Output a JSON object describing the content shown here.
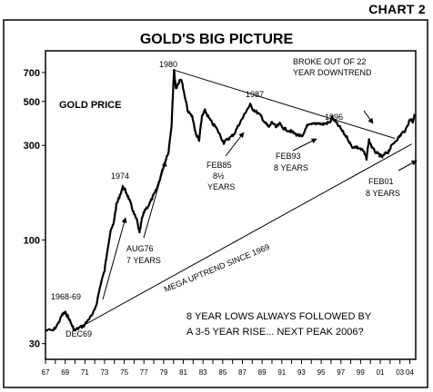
{
  "chart_label": "CHART 2",
  "chart_data": {
    "type": "line",
    "title": "GOLD'S BIG PICTURE",
    "series_label": "GOLD PRICE",
    "y_scale": "log",
    "ylim": [
      25,
      900
    ],
    "y_ticks": [
      30,
      100,
      300,
      500,
      700
    ],
    "x_range": [
      1967,
      2004.6
    ],
    "x_tick_labels": [
      "67",
      "69",
      "71",
      "73",
      "75",
      "77",
      "79",
      "81",
      "83",
      "85",
      "87",
      "89",
      "91",
      "93",
      "95",
      "97",
      "99",
      "01",
      "03",
      "04"
    ],
    "series": [
      {
        "values": [
          [
            1967.0,
            35
          ],
          [
            1967.8,
            35
          ],
          [
            1968.3,
            38
          ],
          [
            1968.7,
            42
          ],
          [
            1969.0,
            43
          ],
          [
            1969.3,
            41
          ],
          [
            1969.7,
            37
          ],
          [
            1969.95,
            35
          ],
          [
            1970.4,
            36
          ],
          [
            1970.9,
            37
          ],
          [
            1971.4,
            40
          ],
          [
            1971.8,
            42
          ],
          [
            1972.2,
            48
          ],
          [
            1972.6,
            60
          ],
          [
            1973.0,
            70
          ],
          [
            1973.3,
            90
          ],
          [
            1973.6,
            110
          ],
          [
            1973.9,
            120
          ],
          [
            1974.2,
            150
          ],
          [
            1974.5,
            165
          ],
          [
            1974.85,
            185
          ],
          [
            1975.1,
            178
          ],
          [
            1975.4,
            165
          ],
          [
            1975.7,
            150
          ],
          [
            1976.0,
            135
          ],
          [
            1976.3,
            125
          ],
          [
            1976.55,
            108
          ],
          [
            1976.8,
            128
          ],
          [
            1977.1,
            142
          ],
          [
            1977.5,
            150
          ],
          [
            1977.9,
            165
          ],
          [
            1978.3,
            180
          ],
          [
            1978.7,
            210
          ],
          [
            1979.1,
            245
          ],
          [
            1979.5,
            280
          ],
          [
            1979.8,
            380
          ],
          [
            1980.05,
            720
          ],
          [
            1980.25,
            580
          ],
          [
            1980.5,
            620
          ],
          [
            1980.8,
            650
          ],
          [
            1981.1,
            540
          ],
          [
            1981.5,
            440
          ],
          [
            1981.9,
            420
          ],
          [
            1982.3,
            340
          ],
          [
            1982.6,
            320
          ],
          [
            1982.9,
            420
          ],
          [
            1983.2,
            450
          ],
          [
            1983.5,
            420
          ],
          [
            1983.9,
            390
          ],
          [
            1984.3,
            370
          ],
          [
            1984.7,
            340
          ],
          [
            1985.1,
            310
          ],
          [
            1985.4,
            320
          ],
          [
            1985.8,
            330
          ],
          [
            1986.2,
            345
          ],
          [
            1986.6,
            380
          ],
          [
            1987.0,
            410
          ],
          [
            1987.4,
            450
          ],
          [
            1987.8,
            480
          ],
          [
            1988.1,
            455
          ],
          [
            1988.5,
            440
          ],
          [
            1988.9,
            420
          ],
          [
            1989.3,
            390
          ],
          [
            1989.7,
            370
          ],
          [
            1990.0,
            395
          ],
          [
            1990.4,
            370
          ],
          [
            1990.8,
            385
          ],
          [
            1991.2,
            365
          ],
          [
            1991.6,
            358
          ],
          [
            1992.0,
            352
          ],
          [
            1992.4,
            342
          ],
          [
            1992.8,
            336
          ],
          [
            1993.1,
            330
          ],
          [
            1993.5,
            375
          ],
          [
            1993.9,
            380
          ],
          [
            1994.3,
            385
          ],
          [
            1994.7,
            390
          ],
          [
            1995.1,
            383
          ],
          [
            1995.5,
            388
          ],
          [
            1995.9,
            392
          ],
          [
            1996.1,
            415
          ],
          [
            1996.5,
            390
          ],
          [
            1996.9,
            370
          ],
          [
            1997.3,
            345
          ],
          [
            1997.7,
            325
          ],
          [
            1998.1,
            295
          ],
          [
            1998.5,
            295
          ],
          [
            1998.9,
            290
          ],
          [
            1999.3,
            280
          ],
          [
            1999.6,
            258
          ],
          [
            1999.85,
            320
          ],
          [
            2000.2,
            290
          ],
          [
            2000.6,
            275
          ],
          [
            2000.95,
            268
          ],
          [
            2001.2,
            262
          ],
          [
            2001.5,
            272
          ],
          [
            2001.8,
            278
          ],
          [
            2002.1,
            295
          ],
          [
            2002.5,
            315
          ],
          [
            2002.9,
            330
          ],
          [
            2003.2,
            345
          ],
          [
            2003.6,
            360
          ],
          [
            2003.9,
            395
          ],
          [
            2004.1,
            410
          ],
          [
            2004.3,
            395
          ],
          [
            2004.5,
            430
          ]
        ]
      }
    ],
    "trendlines": [
      {
        "label": "MEGA UPTREND SINCE 1969",
        "from": [
          1969.95,
          35
        ],
        "to": [
          2004.2,
          305
        ]
      },
      {
        "label": "BROKE OUT OF 22 YEAR DOWNTREND",
        "from": [
          1980.05,
          720
        ],
        "to": [
          2002.5,
          325
        ]
      }
    ],
    "annotations": [
      {
        "name": "label-1968-69",
        "text": "1968-69"
      },
      {
        "name": "label-dec69",
        "text": "DEC69"
      },
      {
        "name": "label-1974",
        "text": "1974"
      },
      {
        "name": "label-aug76",
        "text": "AUG76"
      },
      {
        "name": "label-aug76-years",
        "text": "7 YEARS"
      },
      {
        "name": "label-1980",
        "text": "1980"
      },
      {
        "name": "label-feb85",
        "text": "FEB85"
      },
      {
        "name": "label-feb85-frac",
        "text": "8½"
      },
      {
        "name": "label-feb85-years",
        "text": "YEARS"
      },
      {
        "name": "label-1987",
        "text": "1987"
      },
      {
        "name": "label-feb93",
        "text": "FEB93"
      },
      {
        "name": "label-feb93-years",
        "text": "8 YEARS"
      },
      {
        "name": "label-1996",
        "text": "1996"
      },
      {
        "name": "label-breakout-1",
        "text": "BROKE OUT OF 22"
      },
      {
        "name": "label-breakout-2",
        "text": "YEAR DOWNTREND"
      },
      {
        "name": "label-feb01",
        "text": "FEB01"
      },
      {
        "name": "label-feb01-years",
        "text": "8 YEARS"
      },
      {
        "name": "label-uptrend",
        "text": "MEGA UPTREND SINCE 1969"
      },
      {
        "name": "note-line-1",
        "text": "8 YEAR LOWS ALWAYS FOLLOWED BY"
      },
      {
        "name": "note-line-2",
        "text": "A 3-5 YEAR RISE... NEXT PEAK 2006?"
      }
    ]
  }
}
